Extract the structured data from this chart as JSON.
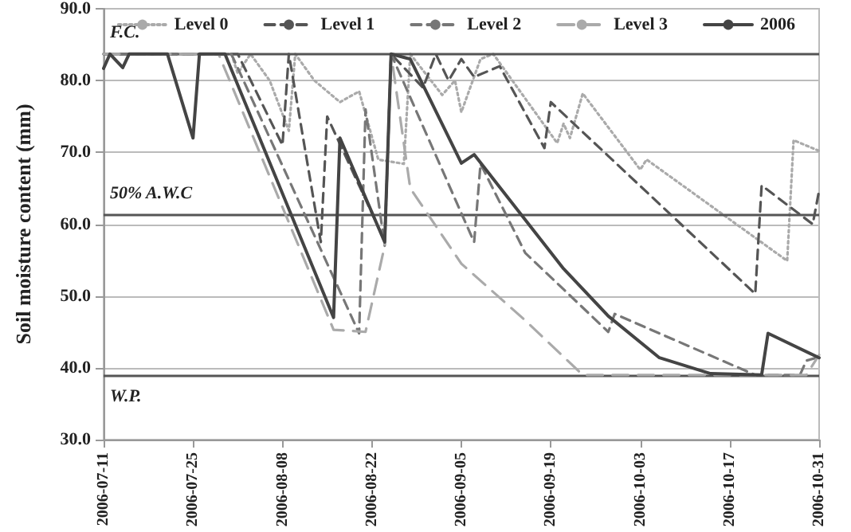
{
  "chart_data": {
    "type": "line",
    "ylabel": "Soil moisture content (mm)",
    "xlim": [
      "2006-07-11",
      "2006-10-31"
    ],
    "xticks": [
      "2006-07-11",
      "2006-07-25",
      "2006-08-08",
      "2006-08-22",
      "2006-09-05",
      "2006-09-19",
      "2006-10-03",
      "2006-10-17",
      "2006-10-31"
    ],
    "ylim": [
      30,
      90
    ],
    "yticks": [
      {
        "value": 30,
        "label": "30.0"
      },
      {
        "value": 40,
        "label": "40.0"
      },
      {
        "value": 50,
        "label": "50.0"
      },
      {
        "value": 60,
        "label": "60.0"
      },
      {
        "value": 70,
        "label": "70.0"
      },
      {
        "value": 80,
        "label": "80.0"
      },
      {
        "value": 90,
        "label": "90.0"
      }
    ],
    "grid": "y",
    "legend": "top right",
    "marker": "none",
    "series": [
      {
        "name": "Level 0",
        "color": "#aaaaaa",
        "line_style": "dotted",
        "x": [
          "2006-07-11",
          "2006-07-31",
          "2006-08-01",
          "2006-08-03",
          "2006-08-06",
          "2006-08-09",
          "2006-08-10",
          "2006-08-13",
          "2006-08-17",
          "2006-08-20",
          "2006-08-23",
          "2006-08-27",
          "2006-08-28",
          "2006-09-02",
          "2006-09-04",
          "2006-09-05",
          "2006-09-08",
          "2006-09-10",
          "2006-09-20",
          "2006-09-21",
          "2006-09-22",
          "2006-09-24",
          "2006-10-03",
          "2006-10-04",
          "2006-10-26",
          "2006-10-27",
          "2006-10-31"
        ],
        "values": [
          83.7,
          83.7,
          81,
          83.7,
          80,
          73,
          83.7,
          80,
          77,
          78.5,
          69,
          68.4,
          83.7,
          78,
          80,
          75.6,
          83,
          83.7,
          71.3,
          74,
          72,
          78.2,
          67.6,
          69,
          54.9,
          71.7,
          70.2
        ]
      },
      {
        "name": "Level 1",
        "color": "#555555",
        "line_style": "dashed",
        "x": [
          "2006-07-11",
          "2006-08-01",
          "2006-08-08",
          "2006-08-09",
          "2006-08-14",
          "2006-08-15",
          "2006-08-24",
          "2006-08-25",
          "2006-08-30",
          "2006-09-01",
          "2006-09-03",
          "2006-09-05",
          "2006-09-07",
          "2006-09-11",
          "2006-09-18",
          "2006-09-19",
          "2006-10-21",
          "2006-10-22",
          "2006-10-30",
          "2006-10-31"
        ],
        "values": [
          83.7,
          83.7,
          71,
          83.7,
          57.5,
          75,
          57.7,
          83.7,
          79,
          83.7,
          80,
          83,
          80.5,
          82,
          70.6,
          77,
          50.3,
          65.4,
          60,
          64.7
        ]
      },
      {
        "name": "Level 2",
        "color": "#777777",
        "line_style": "dashed",
        "x": [
          "2006-07-11",
          "2006-07-31",
          "2006-08-20",
          "2006-08-21",
          "2006-08-24",
          "2006-08-25",
          "2006-09-07",
          "2006-09-08",
          "2006-09-15",
          "2006-09-28",
          "2006-09-29",
          "2006-10-21",
          "2006-10-28",
          "2006-10-29",
          "2006-10-31"
        ],
        "values": [
          83.7,
          83.7,
          44.8,
          76,
          57,
          83.7,
          57.5,
          68.4,
          56,
          45,
          47.5,
          39,
          39,
          41,
          41.5
        ]
      },
      {
        "name": "Level 3",
        "color": "#aaaaaa",
        "line_style": "dashed",
        "x": [
          "2006-07-11",
          "2006-07-29",
          "2006-08-16",
          "2006-08-21",
          "2006-08-24",
          "2006-08-25",
          "2006-08-28",
          "2006-09-05",
          "2006-09-15",
          "2006-09-24",
          "2006-10-29",
          "2006-10-31"
        ],
        "values": [
          83.7,
          83.7,
          45.3,
          45,
          57,
          83.7,
          65,
          54.5,
          46.6,
          39,
          39,
          41.8
        ]
      },
      {
        "name": "2006",
        "color": "#444444",
        "line_style": "solid",
        "x": [
          "2006-07-11",
          "2006-07-12",
          "2006-07-14",
          "2006-07-15",
          "2006-07-21",
          "2006-07-25",
          "2006-07-26",
          "2006-07-30",
          "2006-08-16",
          "2006-08-17",
          "2006-08-24",
          "2006-08-25",
          "2006-08-28",
          "2006-09-05",
          "2006-09-07",
          "2006-09-21",
          "2006-09-28",
          "2006-10-06",
          "2006-10-14",
          "2006-10-22",
          "2006-10-23",
          "2006-10-31"
        ],
        "values": [
          81.7,
          83.7,
          81.8,
          83.7,
          83.7,
          72,
          83.7,
          83.7,
          47,
          72,
          57.5,
          83.7,
          83,
          68.5,
          69.7,
          53.8,
          47.2,
          41.4,
          39.2,
          39,
          44.8,
          41.4
        ]
      }
    ],
    "ref_lines": [
      {
        "axis": "y",
        "value": 83.7,
        "label": "F.C.",
        "color": "#555555"
      },
      {
        "axis": "y",
        "value": 61.3,
        "label": "50% A.W.C",
        "color": "#555555"
      },
      {
        "axis": "y",
        "value": 39,
        "label": "W.P.",
        "color": "#555555"
      }
    ]
  }
}
